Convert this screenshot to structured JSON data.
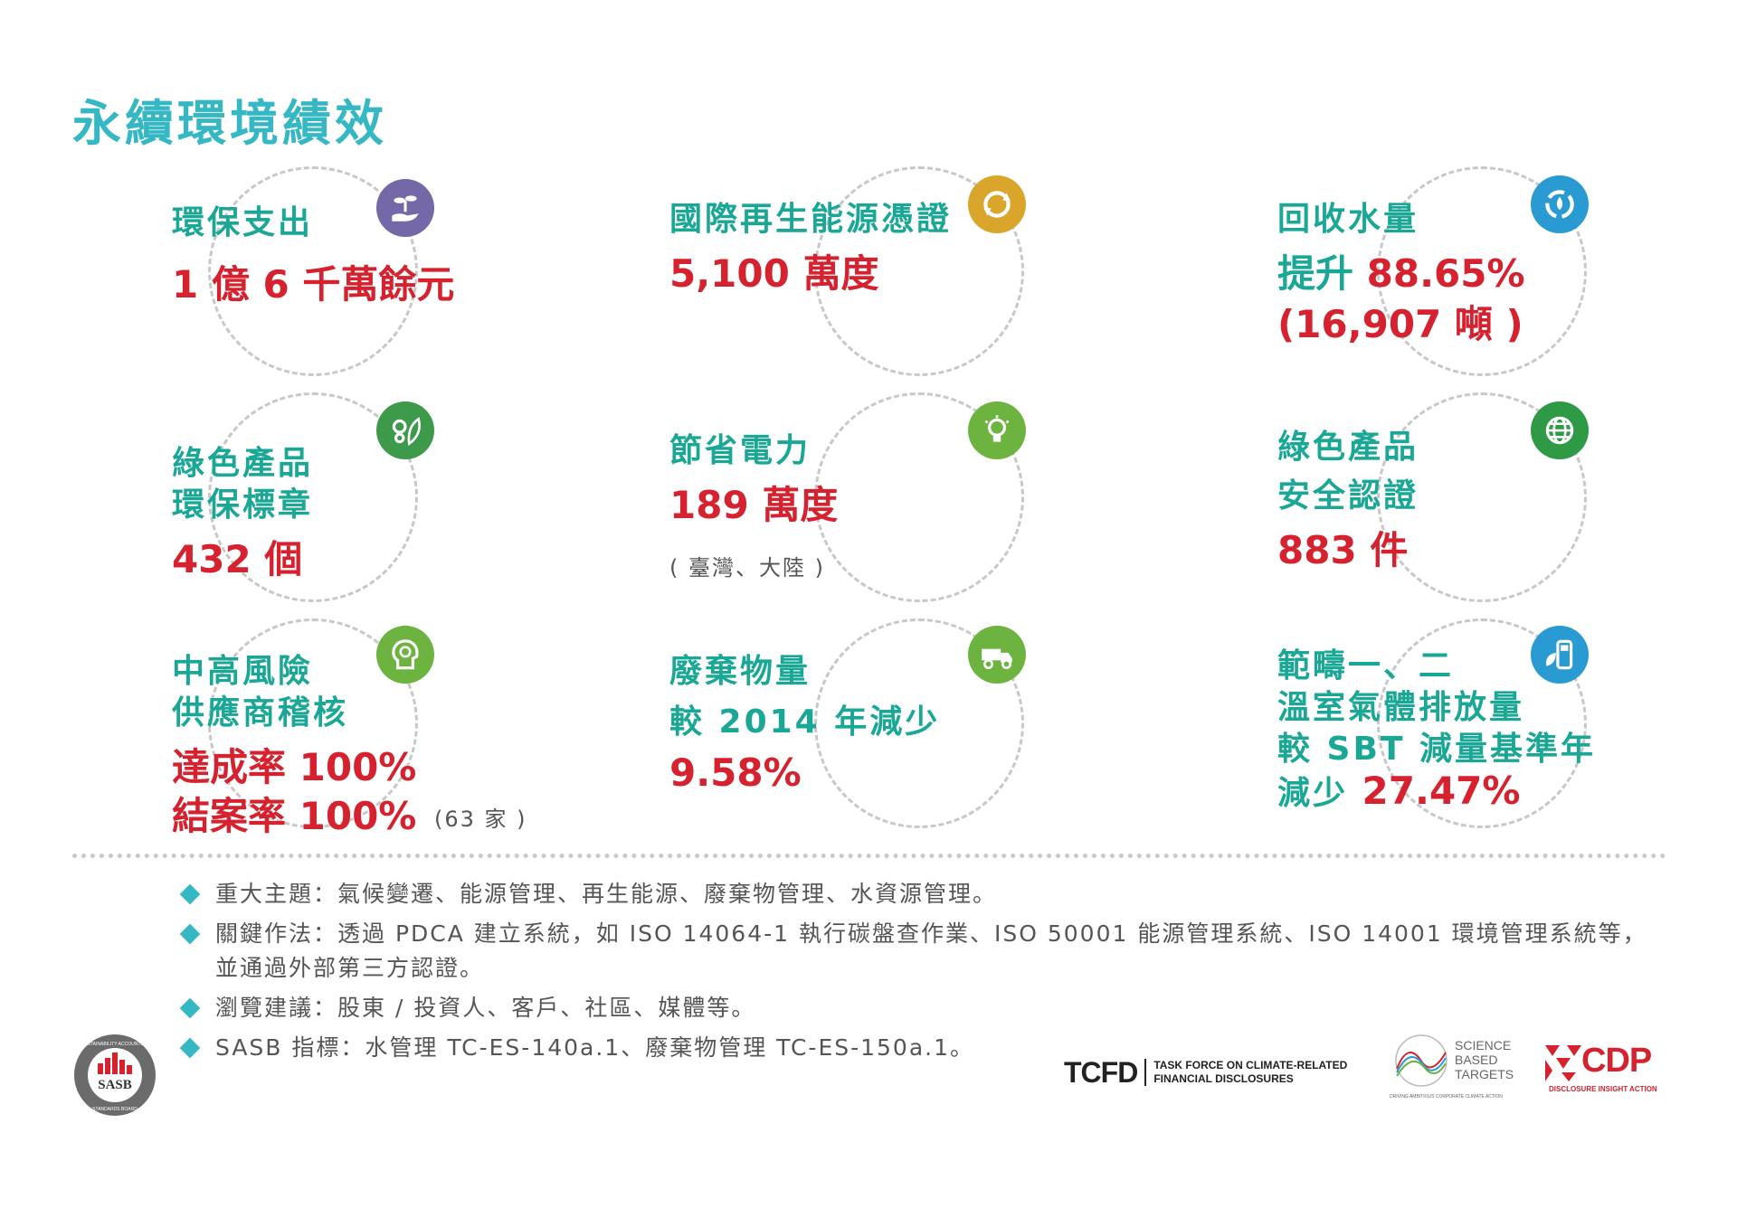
{
  "title": "永續環境績效",
  "cards": [
    {
      "label_lines": [
        "環保支出"
      ],
      "value_lines": [
        "1 億 6 千萬餘元"
      ],
      "icon": "hand-plant-icon",
      "color": "#7468a8"
    },
    {
      "label_lines": [
        "國際再生能源憑證"
      ],
      "value_lines": [
        "5,100 萬度"
      ],
      "icon": "recycle-globe-icon",
      "color": "#d9a62b"
    },
    {
      "label_lines": [
        "回收水量"
      ],
      "value_prefix": "提升 ",
      "value_lines": [
        "88.65%",
        "(16,907 噸 )"
      ],
      "icon": "water-cycle-icon",
      "color": "#2a9bd2"
    },
    {
      "label_lines": [
        "綠色產品",
        "環保標章"
      ],
      "value_lines": [
        "432 個"
      ],
      "icon": "gears-leaf-icon",
      "color": "#3d9a4a"
    },
    {
      "label_lines": [
        "節省電力"
      ],
      "value_lines": [
        "189 萬度"
      ],
      "note": "( 臺灣、大陸 )",
      "icon": "lightbulb-icon",
      "color": "#6cb33f"
    },
    {
      "label_lines": [
        "綠色產品",
        "安全認證"
      ],
      "value_lines": [
        "883 件"
      ],
      "icon": "globe-icon",
      "color": "#2e9a45"
    },
    {
      "label_lines": [
        "中高風險",
        "供應商稽核"
      ],
      "value_lines": [
        "達成率 100%",
        "結案率 100%"
      ],
      "note": "(63 家 )",
      "icon": "head-gears-icon",
      "color": "#6cb33f"
    },
    {
      "label_lines": [
        "廢棄物量",
        "較 2014 年減少"
      ],
      "value_lines": [
        "9.58%"
      ],
      "icon": "truck-icon",
      "color": "#6cb33f"
    },
    {
      "label_lines": [
        "範疇一、二",
        "溫室氣體排放量",
        "較 SBT 減量基準年"
      ],
      "value_prefix": "減少 ",
      "value_lines": [
        "27.47%"
      ],
      "icon": "fuel-leaf-icon",
      "color": "#2a9bd2"
    }
  ],
  "notes": [
    "重大主題：氣候變遷、能源管理、再生能源、廢棄物管理、水資源管理。",
    "關鍵作法：透過 PDCA 建立系統，如 ISO 14064-1 執行碳盤查作業、ISO 50001 能源管理系統、ISO 14001 環境管理系統等，並通過外部第三方認證。",
    "瀏覽建議：股東 / 投資人、客戶、社區、媒體等。",
    "SASB 指標：水管理 TC-ES-140a.1、廢棄物管理 TC-ES-150a.1。"
  ],
  "logos": {
    "sasb": {
      "center": "SASB",
      "ring_top": "SUSTAINABILITY ACCOUNTING",
      "ring_bottom": "STANDARDS BOARD"
    },
    "tcfd": {
      "mark": "TCFD",
      "line1": "TASK FORCE ON CLIMATE-RELATED",
      "line2": "FINANCIAL DISCLOSURES"
    },
    "sbt": {
      "line1": "SCIENCE",
      "line2": "BASED",
      "line3": "TARGETS",
      "tagline": "DRIVING AMBITIOUS CORPORATE CLIMATE ACTION"
    },
    "cdp": {
      "mark": "CDP",
      "tagline": "DISCLOSURE INSIGHT ACTION"
    }
  },
  "colors": {
    "title": "#35b7c4",
    "label": "#1aa796",
    "value": "#d6222e"
  }
}
